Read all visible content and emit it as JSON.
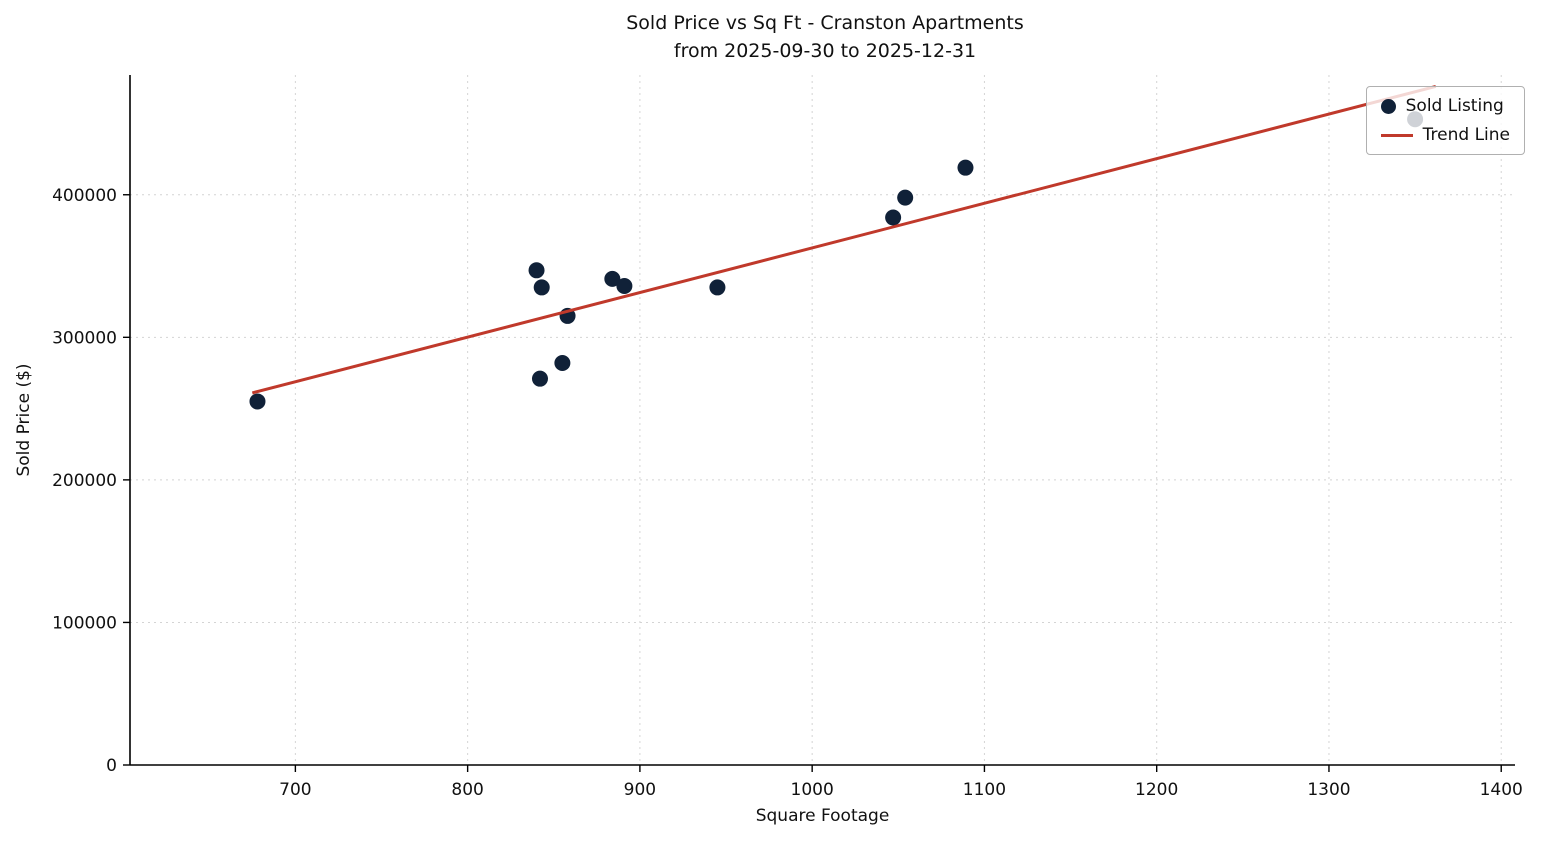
{
  "chart_data": {
    "type": "scatter",
    "title": "Sold Price vs Sq Ft - Cranston Apartments",
    "subtitle": "from 2025-09-30 to 2025-12-31",
    "xlabel": "Square Footage",
    "ylabel": "Sold Price ($)",
    "xlim": [
      604,
      1408
    ],
    "ylim": [
      0,
      484000
    ],
    "x_ticks": [
      700,
      800,
      900,
      1000,
      1100,
      1200,
      1300,
      1400
    ],
    "y_ticks": [
      0,
      100000,
      200000,
      300000,
      400000
    ],
    "grid": true,
    "legend_position": "top-right",
    "series": [
      {
        "name": "Sold Listing",
        "type": "scatter",
        "color": "#102138",
        "points": [
          [
            678,
            255000
          ],
          [
            840,
            347000
          ],
          [
            843,
            335000
          ],
          [
            842,
            271000
          ],
          [
            855,
            282000
          ],
          [
            858,
            315000
          ],
          [
            884,
            341000
          ],
          [
            891,
            336000
          ],
          [
            945,
            335000
          ],
          [
            1047,
            384000
          ],
          [
            1054,
            398000
          ],
          [
            1089,
            419000
          ],
          [
            1350,
            453000
          ]
        ]
      },
      {
        "name": "Trend Line",
        "type": "line",
        "color": "#c0392b",
        "points": [
          [
            675,
            261000
          ],
          [
            1362,
            476000
          ]
        ]
      }
    ]
  }
}
